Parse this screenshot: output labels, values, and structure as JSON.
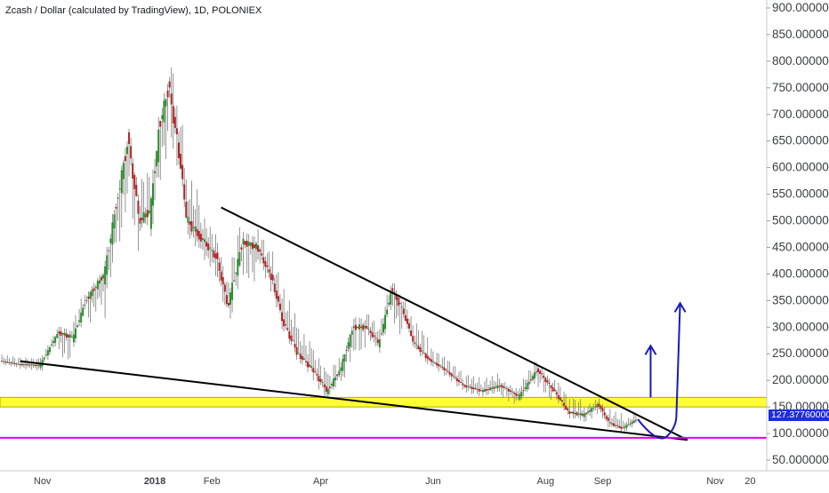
{
  "chart_data": {
    "type": "candlestick",
    "title": "Zcash / Dollar (calculated by TradingView), 1D, POLONIEX",
    "x_axis": {
      "tick_labels": [
        "Nov",
        "2018",
        "Feb",
        "Apr",
        "Jun",
        "Aug",
        "Sep",
        "Nov",
        "20"
      ],
      "tick_dates": [
        "2017-11-01",
        "2018-01-01",
        "2018-02-01",
        "2018-04-01",
        "2018-06-01",
        "2018-08-01",
        "2018-09-01",
        "2018-11-01",
        "2018-11-20"
      ],
      "range": [
        "2017-10-09",
        "2018-11-29"
      ]
    },
    "y_axis": {
      "tick_labels": [
        "900.000000",
        "850.000000",
        "800.000000",
        "750.000000",
        "700.000000",
        "650.000000",
        "600.000000",
        "550.000000",
        "500.000000",
        "450.000000",
        "400.000000",
        "350.000000",
        "300.000000",
        "250.000000",
        "200.000000",
        "150.000000",
        "100.000000",
        "50.000000"
      ],
      "range": [
        30,
        915
      ],
      "position": "right"
    },
    "last_price": "127.37760000",
    "ohlc_daily": [
      [
        "2017-10-10",
        242,
        250,
        232,
        236
      ],
      [
        "2017-10-20",
        235,
        245,
        222,
        230
      ],
      [
        "2017-10-31",
        233,
        240,
        220,
        228
      ],
      [
        "2017-11-10",
        228,
        300,
        222,
        290
      ],
      [
        "2017-11-18",
        300,
        320,
        270,
        280
      ],
      [
        "2017-11-25",
        290,
        360,
        280,
        350
      ],
      [
        "2017-12-05",
        320,
        420,
        300,
        400
      ],
      [
        "2017-12-12",
        420,
        560,
        380,
        540
      ],
      [
        "2017-12-18",
        560,
        670,
        520,
        650
      ],
      [
        "2017-12-24",
        580,
        620,
        480,
        500
      ],
      [
        "2017-12-30",
        520,
        560,
        440,
        520
      ],
      [
        "2018-01-04",
        540,
        700,
        520,
        680
      ],
      [
        "2018-01-09",
        700,
        850,
        650,
        750
      ],
      [
        "2018-01-14",
        700,
        760,
        620,
        640
      ],
      [
        "2018-01-19",
        600,
        620,
        460,
        500
      ],
      [
        "2018-01-26",
        500,
        530,
        420,
        470
      ],
      [
        "2018-02-04",
        450,
        470,
        380,
        430
      ],
      [
        "2018-02-10",
        400,
        420,
        300,
        340
      ],
      [
        "2018-02-18",
        380,
        480,
        360,
        460
      ],
      [
        "2018-02-26",
        470,
        500,
        420,
        450
      ],
      [
        "2018-03-06",
        440,
        460,
        370,
        390
      ],
      [
        "2018-03-12",
        380,
        400,
        300,
        310
      ],
      [
        "2018-03-20",
        300,
        320,
        240,
        250
      ],
      [
        "2018-03-28",
        240,
        270,
        200,
        220
      ],
      [
        "2018-04-05",
        200,
        220,
        165,
        180
      ],
      [
        "2018-04-12",
        185,
        230,
        175,
        220
      ],
      [
        "2018-04-19",
        240,
        320,
        230,
        300
      ],
      [
        "2018-04-26",
        310,
        340,
        280,
        300
      ],
      [
        "2018-05-03",
        300,
        310,
        260,
        270
      ],
      [
        "2018-05-10",
        290,
        390,
        280,
        370
      ],
      [
        "2018-05-16",
        360,
        370,
        320,
        330
      ],
      [
        "2018-05-22",
        320,
        330,
        260,
        270
      ],
      [
        "2018-05-30",
        260,
        270,
        230,
        240
      ],
      [
        "2018-06-08",
        240,
        250,
        210,
        220
      ],
      [
        "2018-06-18",
        210,
        220,
        180,
        190
      ],
      [
        "2018-06-28",
        190,
        210,
        170,
        180
      ],
      [
        "2018-07-08",
        175,
        200,
        165,
        190
      ],
      [
        "2018-07-18",
        185,
        200,
        160,
        170
      ],
      [
        "2018-07-28",
        190,
        230,
        180,
        220
      ],
      [
        "2018-08-06",
        210,
        215,
        170,
        180
      ],
      [
        "2018-08-14",
        170,
        180,
        130,
        140
      ],
      [
        "2018-08-22",
        140,
        150,
        120,
        135
      ],
      [
        "2018-08-30",
        150,
        165,
        140,
        155
      ],
      [
        "2018-09-05",
        150,
        155,
        115,
        120
      ],
      [
        "2018-09-12",
        115,
        125,
        105,
        110
      ],
      [
        "2018-09-20",
        110,
        130,
        105,
        127
      ]
    ],
    "annotations": [
      {
        "type": "trendline",
        "name": "descending resistance",
        "from": [
          "2018-02-06",
          525
        ],
        "to": [
          "2018-10-17",
          88
        ]
      },
      {
        "type": "trendline",
        "name": "ascending support",
        "from": [
          "2017-10-20",
          236
        ],
        "to": [
          "2018-10-17",
          88
        ]
      },
      {
        "type": "zone",
        "name": "support/resistance zone",
        "from": 150,
        "to": 168,
        "color": "#ffff00"
      },
      {
        "type": "horizontal_line",
        "name": "support level",
        "value": 92,
        "color": "#e600e6"
      },
      {
        "type": "arrow",
        "name": "short-term target",
        "from": [
          "2018-09-27",
          168
        ],
        "to": [
          "2018-09-27",
          265
        ],
        "color": "#1a1ab8"
      },
      {
        "type": "curve_arrow",
        "name": "projected path",
        "points": [
          [
            "2018-09-20",
            127
          ],
          [
            "2018-10-01",
            92
          ],
          [
            "2018-10-11",
            135
          ],
          [
            "2018-10-13",
            345
          ]
        ],
        "color": "#1a1ab8"
      }
    ],
    "grid": false,
    "legend": "none"
  }
}
